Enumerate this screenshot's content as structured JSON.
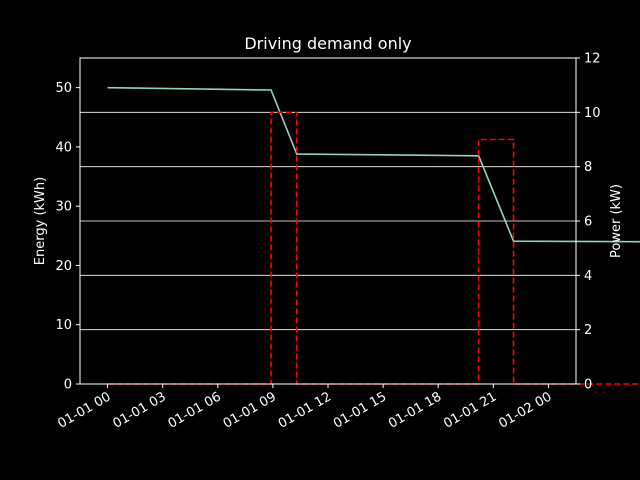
{
  "chart_data": {
    "type": "line",
    "title": "Driving demand only",
    "xlabel": "",
    "ylabel": "Energy (kWh)",
    "ylabel_right": "Power (kW)",
    "x_ticks": [
      "01-01 00",
      "01-01 03",
      "01-01 06",
      "01-01 09",
      "01-01 12",
      "01-01 15",
      "01-01 18",
      "01-01 21",
      "01-02 00"
    ],
    "x_range_hours": [
      -1.5,
      25.5
    ],
    "ylim": [
      0,
      55
    ],
    "ylim_right": [
      0,
      12
    ],
    "yticks": [
      0,
      10,
      20,
      30,
      40,
      50
    ],
    "yticks_right": [
      0,
      2,
      4,
      6,
      8,
      10,
      12
    ],
    "grid": "horizontal, right axis",
    "series": [
      {
        "axis": "left",
        "color": "#8dd3c7",
        "style": "solid",
        "x_hours": [
          0,
          8.9,
          10.3,
          20.2,
          22.1,
          30.0
        ],
        "values": [
          50.0,
          49.6,
          38.8,
          38.5,
          24.1,
          24.0
        ]
      },
      {
        "axis": "right",
        "color": "#ff0000",
        "style": "dashed",
        "x_hours": [
          0,
          8.9,
          8.9,
          10.3,
          10.3,
          20.2,
          20.2,
          22.1,
          22.1,
          30.0
        ],
        "values": [
          0,
          0,
          10.0,
          10.0,
          0,
          0,
          9.0,
          9.0,
          0,
          0
        ]
      }
    ]
  }
}
